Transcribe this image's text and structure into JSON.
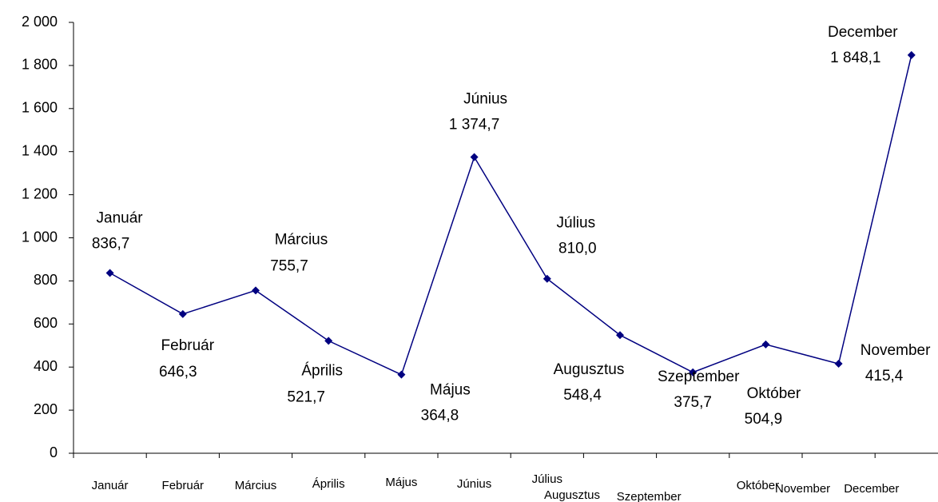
{
  "chart_data": {
    "type": "line",
    "categories": [
      "Január",
      "Február",
      "Március",
      "Április",
      "Május",
      "Június",
      "Július",
      "Augusztus",
      "Szeptember",
      "Október",
      "November",
      "December"
    ],
    "series": [
      {
        "name": "",
        "color": "#000080",
        "values": [
          836.7,
          646.3,
          755.7,
          521.7,
          364.8,
          1374.7,
          810.0,
          548.4,
          375.7,
          504.9,
          415.4,
          1848.1
        ],
        "value_labels": [
          "836,7",
          "646,3",
          "755,7",
          "521,7",
          "364,8",
          "1 374,7",
          "810,0",
          "548,4",
          "375,7",
          "504,9",
          "415,4",
          "1 848,1"
        ]
      }
    ],
    "ylim": [
      0,
      2000
    ],
    "yticks": [
      0,
      200,
      400,
      600,
      800,
      {
        "value": 1000,
        "label": "1 000"
      },
      {
        "value": 1200,
        "label": "1 200"
      },
      {
        "value": 1400,
        "label": "1 400"
      },
      {
        "value": 1600,
        "label": "1 600"
      },
      {
        "value": 1800,
        "label": "1 800"
      },
      {
        "value": 2000,
        "label": "2 000"
      }
    ],
    "grid": false
  }
}
